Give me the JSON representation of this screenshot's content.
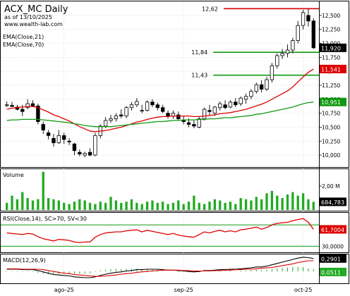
{
  "header": {
    "title": "ACX_MC Daily",
    "date_line": "as of 13/10/2025",
    "site": "www.wealth-lab.com"
  },
  "indicators": {
    "ema21_label": "EMA(Close,21)",
    "ema70_label": "EMA(Close,70)",
    "volume_label": "Volume",
    "rsi_label": "RSI(Close,14), SC>70, SV<30",
    "macd_label": "MACD(12,26,9)"
  },
  "colors": {
    "up_candle": "#ffffff",
    "down_candle": "#000000",
    "ema21": "#dd0000",
    "ema70": "#119911",
    "volume": "#22aa22",
    "rsi": "#dd0000",
    "macd": "#000000",
    "signal": "#dd0000",
    "histogram": "#22aa22",
    "resistance": "#dd0000",
    "support": "#119911"
  },
  "chart_data": [
    {
      "type": "candlestick",
      "x_tick_labels": [
        "ago-25",
        "sep-25",
        "oct-25"
      ],
      "y_tick_labels": [
        "12,500",
        "12,250",
        "12,000",
        "11,750",
        "11,500",
        "11,250",
        "11,000",
        "10,750",
        "10,500",
        "10,250",
        "10,000"
      ],
      "ylim": [
        9.85,
        12.7
      ],
      "levels": [
        {
          "label": "12,62",
          "value": 12.62,
          "color": "#dd0000",
          "start_index": 58
        },
        {
          "label": "11,84",
          "value": 11.84,
          "color": "#119911",
          "start_index": 56
        },
        {
          "label": "11,43",
          "value": 11.43,
          "color": "#119911",
          "start_index": 56
        }
      ],
      "last_price_label": "11,920",
      "last_price": 11.92,
      "ema21_last_label": "11,541",
      "ema21_last": 11.541,
      "ema70_last_label": "10,951",
      "ema70_last": 10.951,
      "ohlc": [
        [
          10.9,
          10.96,
          10.86,
          10.9
        ],
        [
          10.89,
          10.95,
          10.86,
          10.87
        ],
        [
          10.86,
          10.9,
          10.8,
          10.82
        ],
        [
          10.82,
          10.9,
          10.7,
          10.78
        ],
        [
          10.85,
          11.0,
          10.82,
          10.92
        ],
        [
          10.92,
          10.98,
          10.86,
          10.88
        ],
        [
          10.88,
          10.92,
          10.55,
          10.6
        ],
        [
          10.55,
          10.6,
          10.38,
          10.45
        ],
        [
          10.4,
          10.45,
          10.28,
          10.35
        ],
        [
          10.3,
          10.38,
          10.15,
          10.22
        ],
        [
          10.22,
          10.45,
          10.2,
          10.35
        ],
        [
          10.35,
          10.4,
          10.2,
          10.28
        ],
        [
          10.25,
          10.3,
          10.18,
          10.24
        ],
        [
          10.2,
          10.22,
          10.0,
          10.08
        ],
        [
          10.05,
          10.1,
          9.98,
          10.02
        ],
        [
          10.0,
          10.06,
          9.96,
          10.03
        ],
        [
          10.05,
          10.12,
          9.98,
          10.0
        ],
        [
          10.0,
          10.4,
          9.98,
          10.35
        ],
        [
          10.35,
          10.55,
          10.3,
          10.52
        ],
        [
          10.52,
          10.68,
          10.48,
          10.62
        ],
        [
          10.62,
          10.72,
          10.58,
          10.65
        ],
        [
          10.65,
          10.75,
          10.6,
          10.7
        ],
        [
          10.72,
          10.82,
          10.66,
          10.7
        ],
        [
          10.7,
          10.88,
          10.66,
          10.85
        ],
        [
          10.85,
          10.95,
          10.8,
          10.9
        ],
        [
          10.9,
          11.02,
          10.86,
          10.96
        ],
        [
          10.8,
          10.9,
          10.75,
          10.8
        ],
        [
          10.8,
          10.98,
          10.78,
          10.95
        ],
        [
          10.95,
          11.0,
          10.86,
          10.9
        ],
        [
          10.9,
          10.94,
          10.8,
          10.85
        ],
        [
          10.85,
          10.9,
          10.75,
          10.78
        ],
        [
          10.75,
          10.8,
          10.65,
          10.7
        ],
        [
          10.7,
          10.8,
          10.65,
          10.75
        ],
        [
          10.72,
          10.78,
          10.62,
          10.65
        ],
        [
          10.62,
          10.7,
          10.55,
          10.6
        ],
        [
          10.58,
          10.66,
          10.5,
          10.55
        ],
        [
          10.55,
          10.62,
          10.48,
          10.52
        ],
        [
          10.5,
          10.68,
          10.48,
          10.65
        ],
        [
          10.65,
          10.85,
          10.62,
          10.82
        ],
        [
          10.8,
          10.9,
          10.72,
          10.78
        ],
        [
          10.75,
          10.88,
          10.7,
          10.86
        ],
        [
          10.85,
          10.96,
          10.8,
          10.92
        ],
        [
          10.9,
          10.98,
          10.82,
          10.85
        ],
        [
          10.86,
          10.98,
          10.84,
          10.95
        ],
        [
          10.95,
          11.02,
          10.86,
          10.9
        ],
        [
          10.92,
          11.05,
          10.88,
          11.02
        ],
        [
          11.0,
          11.1,
          10.92,
          11.05
        ],
        [
          11.05,
          11.18,
          11.0,
          11.14
        ],
        [
          11.14,
          11.3,
          11.1,
          11.26
        ],
        [
          11.26,
          11.34,
          11.12,
          11.18
        ],
        [
          11.18,
          11.4,
          11.15,
          11.35
        ],
        [
          11.35,
          11.65,
          11.3,
          11.6
        ],
        [
          11.6,
          11.82,
          11.55,
          11.78
        ],
        [
          11.78,
          11.9,
          11.72,
          11.82
        ],
        [
          11.82,
          11.98,
          11.75,
          11.88
        ],
        [
          11.88,
          12.1,
          11.82,
          12.05
        ],
        [
          12.05,
          12.4,
          12.0,
          12.32
        ],
        [
          12.32,
          12.6,
          12.25,
          12.55
        ],
        [
          12.5,
          12.62,
          12.3,
          12.4
        ],
        [
          12.4,
          12.45,
          11.9,
          11.92
        ]
      ],
      "ema21": [
        10.82,
        10.84,
        10.85,
        10.86,
        10.87,
        10.87,
        10.85,
        10.81,
        10.77,
        10.72,
        10.69,
        10.65,
        10.61,
        10.56,
        10.51,
        10.47,
        10.43,
        10.42,
        10.43,
        10.44,
        10.46,
        10.48,
        10.5,
        10.53,
        10.56,
        10.59,
        10.61,
        10.64,
        10.66,
        10.68,
        10.69,
        10.69,
        10.7,
        10.7,
        10.7,
        10.7,
        10.69,
        10.69,
        10.7,
        10.71,
        10.72,
        10.74,
        10.75,
        10.76,
        10.78,
        10.8,
        10.82,
        10.85,
        10.88,
        10.91,
        10.95,
        11.0,
        11.05,
        11.1,
        11.15,
        11.22,
        11.31,
        11.4,
        11.48,
        11.541
      ],
      "ema70": [
        10.62,
        10.63,
        10.63,
        10.64,
        10.64,
        10.64,
        10.64,
        10.63,
        10.62,
        10.61,
        10.6,
        10.59,
        10.58,
        10.56,
        10.55,
        10.53,
        10.52,
        10.51,
        10.51,
        10.51,
        10.51,
        10.52,
        10.53,
        10.54,
        10.55,
        10.56,
        10.57,
        10.58,
        10.59,
        10.6,
        10.6,
        10.61,
        10.62,
        10.62,
        10.63,
        10.63,
        10.63,
        10.64,
        10.64,
        10.65,
        10.65,
        10.66,
        10.67,
        10.67,
        10.68,
        10.69,
        10.7,
        10.71,
        10.73,
        10.74,
        10.76,
        10.78,
        10.8,
        10.82,
        10.84,
        10.86,
        10.89,
        10.92,
        10.94,
        10.951
      ]
    },
    {
      "type": "bar",
      "title": "Volume",
      "y_tick_labels": [
        "2,00 M"
      ],
      "last_label": "684,783",
      "ylim": [
        0,
        3.3
      ],
      "values": [
        0.6,
        1.2,
        0.9,
        1.5,
        1.0,
        0.8,
        0.9,
        3.2,
        1.0,
        0.9,
        0.8,
        0.6,
        0.5,
        0.7,
        0.9,
        0.8,
        0.6,
        0.5,
        0.7,
        0.6,
        1.1,
        0.8,
        0.6,
        0.7,
        0.9,
        0.6,
        0.5,
        0.7,
        0.8,
        0.6,
        0.7,
        0.5,
        0.6,
        0.8,
        0.5,
        0.7,
        1.2,
        0.6,
        0.5,
        0.7,
        0.9,
        0.8,
        0.6,
        0.7,
        0.5,
        1.0,
        0.9,
        0.8,
        1.1,
        0.9,
        1.4,
        1.6,
        1.2,
        1.0,
        1.3,
        1.5,
        1.2,
        1.4,
        0.9,
        0.685
      ]
    },
    {
      "type": "line",
      "title": "RSI(Close,14), SC>70, SV<30",
      "y_tick_labels": [
        "30,0000"
      ],
      "last_label": "61,7004",
      "ylim": [
        20,
        90
      ],
      "upper": 70,
      "lower": 30,
      "values": [
        55,
        54,
        53,
        52,
        54,
        53,
        48,
        44,
        42,
        40,
        43,
        42,
        41,
        38,
        37,
        38,
        38,
        47,
        52,
        55,
        56,
        57,
        57,
        59,
        60,
        61,
        57,
        60,
        58,
        56,
        54,
        52,
        54,
        51,
        49,
        48,
        47,
        52,
        57,
        55,
        58,
        60,
        57,
        59,
        57,
        61,
        62,
        64,
        66,
        62,
        65,
        70,
        73,
        74,
        75,
        78,
        80,
        82,
        75,
        61.7
      ]
    },
    {
      "type": "line",
      "title": "MACD(12,26,9)",
      "y_tick_labels": [],
      "macd_last_label": "0,2901",
      "hist_last_label": "0,0511",
      "ylim": [
        -0.25,
        0.35
      ],
      "macd": [
        0.05,
        0.05,
        0.05,
        0.04,
        0.04,
        0.04,
        0.02,
        -0.01,
        -0.04,
        -0.07,
        -0.08,
        -0.09,
        -0.1,
        -0.12,
        -0.13,
        -0.14,
        -0.14,
        -0.12,
        -0.09,
        -0.06,
        -0.04,
        -0.02,
        -0.01,
        0.01,
        0.02,
        0.04,
        0.04,
        0.05,
        0.05,
        0.05,
        0.04,
        0.03,
        0.03,
        0.02,
        0.01,
        0.0,
        -0.01,
        0.0,
        0.02,
        0.02,
        0.03,
        0.04,
        0.04,
        0.05,
        0.05,
        0.06,
        0.07,
        0.08,
        0.1,
        0.1,
        0.12,
        0.15,
        0.18,
        0.21,
        0.24,
        0.27,
        0.3,
        0.32,
        0.31,
        0.2901
      ],
      "signal": [
        0.06,
        0.06,
        0.06,
        0.05,
        0.05,
        0.05,
        0.05,
        0.04,
        0.02,
        0.0,
        -0.02,
        -0.04,
        -0.05,
        -0.07,
        -0.08,
        -0.09,
        -0.1,
        -0.11,
        -0.11,
        -0.1,
        -0.09,
        -0.08,
        -0.06,
        -0.05,
        -0.04,
        -0.02,
        -0.01,
        0.0,
        0.01,
        0.02,
        0.03,
        0.03,
        0.03,
        0.03,
        0.02,
        0.02,
        0.01,
        0.01,
        0.01,
        0.01,
        0.02,
        0.02,
        0.03,
        0.03,
        0.04,
        0.04,
        0.05,
        0.05,
        0.06,
        0.07,
        0.08,
        0.09,
        0.11,
        0.13,
        0.15,
        0.17,
        0.2,
        0.22,
        0.24,
        0.239
      ]
    }
  ]
}
